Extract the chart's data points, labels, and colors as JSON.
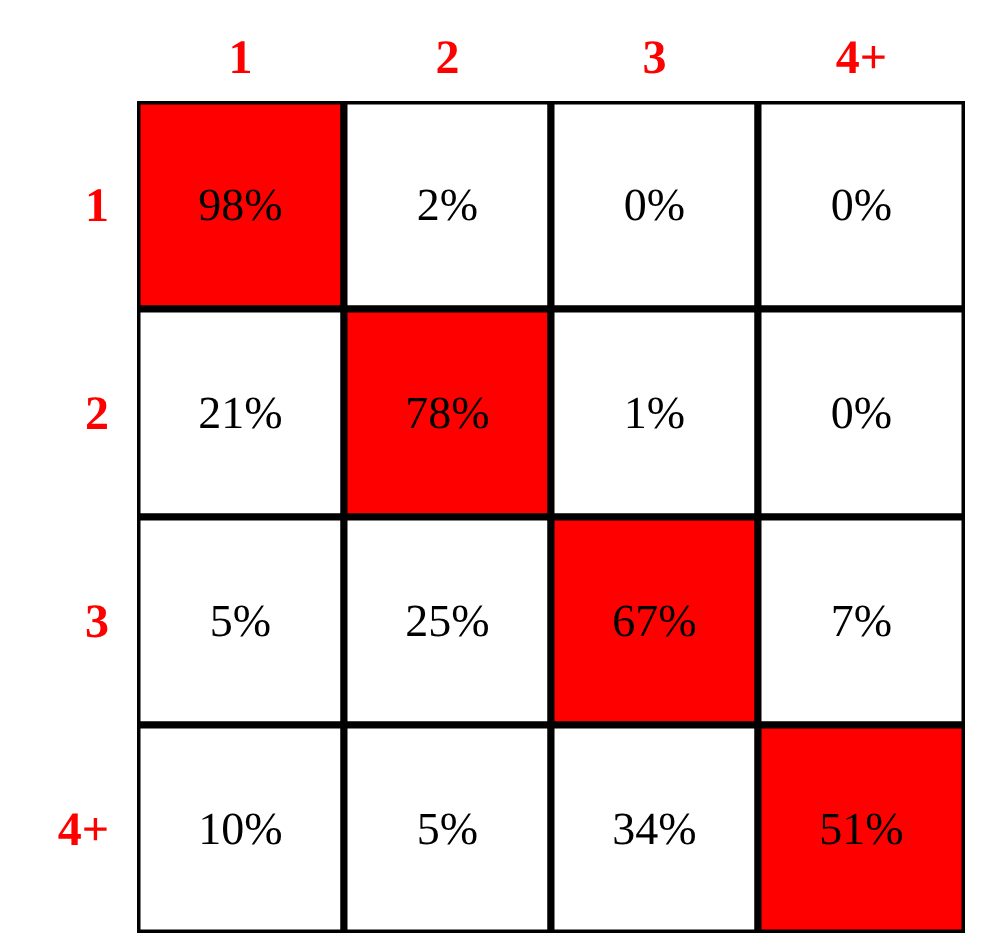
{
  "chart_data": {
    "type": "heatmap",
    "categories": [
      "1",
      "2",
      "3",
      "4+"
    ],
    "y_categories": [
      "1",
      "2",
      "3",
      "4+"
    ],
    "cells": [
      [
        98,
        2,
        0,
        0
      ],
      [
        21,
        78,
        1,
        0
      ],
      [
        5,
        25,
        67,
        7
      ],
      [
        10,
        5,
        34,
        51
      ]
    ],
    "cell_labels": [
      [
        "98%",
        "2%",
        "0%",
        "0%"
      ],
      [
        "21%",
        "78%",
        "1%",
        "0%"
      ],
      [
        "5%",
        "25%",
        "67%",
        "7%"
      ],
      [
        "10%",
        "5%",
        "34%",
        "51%"
      ]
    ],
    "color": "#ff0000"
  }
}
